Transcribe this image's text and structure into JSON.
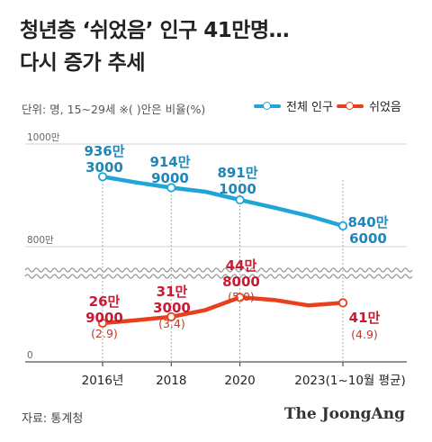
{
  "title_line1": "청년층 ‘쉬었음’ 인구 41만명…",
  "title_line2": "다시 증가 추세",
  "unit_note": "단위: 명, 15~29세  ※( )안은 비율(%)",
  "source": "자료: 통계청",
  "brand": "The JoongAng",
  "colors": {
    "total": "#1fa6d6",
    "rest": "#e8401c",
    "total_label": "#1f86b8",
    "rest_label": "#c91a34",
    "grid": "#d0d0d0"
  },
  "chart_data": {
    "type": "line",
    "categories": [
      "2016년",
      "2018",
      "2020",
      "2023(1~10월 평균)"
    ],
    "x_tick_positions_years": [
      2016,
      2018,
      2020,
      2023
    ],
    "axis_breaks": true,
    "y_tick_labels": [
      "1000만",
      "800만",
      "0"
    ],
    "legend_placement": "top-right",
    "series": [
      {
        "name": "전체 인구",
        "points": [
          {
            "x": 2016,
            "y": 9363000
          },
          {
            "x": 2017,
            "y": 9250000
          },
          {
            "x": 2018,
            "y": 9149000
          },
          {
            "x": 2019,
            "y": 9070000
          },
          {
            "x": 2020,
            "y": 8911000
          },
          {
            "x": 2021,
            "y": 8760000
          },
          {
            "x": 2022,
            "y": 8600000
          },
          {
            "x": 2023,
            "y": 8406000
          }
        ],
        "labels": [
          {
            "x": 2016,
            "text1": "936만",
            "text2": "3000"
          },
          {
            "x": 2018,
            "text1": "914만",
            "text2": "9000"
          },
          {
            "x": 2020,
            "text1": "891만",
            "text2": "1000"
          },
          {
            "x": 2023,
            "text1": "840만",
            "text2": "6000"
          }
        ]
      },
      {
        "name": "쉬었음",
        "points": [
          {
            "x": 2016,
            "y": 269000
          },
          {
            "x": 2017,
            "y": 290000
          },
          {
            "x": 2018,
            "y": 313000
          },
          {
            "x": 2019,
            "y": 360000
          },
          {
            "x": 2020,
            "y": 448000
          },
          {
            "x": 2021,
            "y": 430000
          },
          {
            "x": 2022,
            "y": 392000
          },
          {
            "x": 2023,
            "y": 410000
          }
        ],
        "labels": [
          {
            "x": 2016,
            "text1": "26만",
            "text2": "9000",
            "rate": "(2.9)"
          },
          {
            "x": 2018,
            "text1": "31만",
            "text2": "3000",
            "rate": "(3.4)"
          },
          {
            "x": 2020,
            "text1": "44만",
            "text2": "8000",
            "rate": "(5.0)"
          },
          {
            "x": 2023,
            "text1": "41만",
            "text2": "",
            "rate": "(4.9)"
          }
        ]
      }
    ]
  }
}
